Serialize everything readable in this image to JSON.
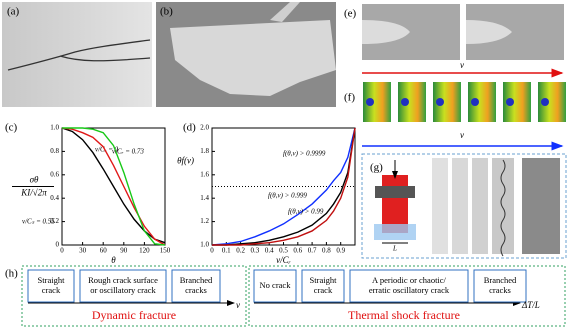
{
  "panels": {
    "a": "(a)",
    "b": "(b)",
    "e": "(e)",
    "f": "(f)",
    "g": "(g)",
    "h": "(h)"
  },
  "panel_e": {
    "velocity_label": "v"
  },
  "panel_f": {
    "velocity_label": "v"
  },
  "panel_g": {
    "length_label": "L"
  },
  "chart_data": [
    {
      "type": "line",
      "panel_label": "(c)",
      "x_label": "θ",
      "y_label": [
        "σθ",
        "KI/√2π"
      ],
      "x": [
        0,
        15,
        30,
        45,
        60,
        75,
        90,
        105,
        120,
        135,
        150
      ],
      "series": [
        {
          "name": "v/Cᵣ = 0",
          "color": "#000000",
          "values": [
            1.0,
            0.97,
            0.9,
            0.79,
            0.65,
            0.5,
            0.35,
            0.22,
            0.12,
            0.05,
            0.02
          ]
        },
        {
          "name": "v/Cₛ = 0.55",
          "color": "#e01818",
          "values": [
            1.0,
            0.99,
            0.96,
            0.92,
            0.84,
            0.68,
            0.5,
            0.32,
            0.16,
            0.05,
            0.0
          ]
        },
        {
          "name": "v/Cᵣ = 0.73",
          "color": "#18c818",
          "values": [
            1.0,
            1.0,
            1.0,
            0.99,
            0.96,
            0.85,
            0.62,
            0.35,
            0.12,
            0.01,
            0.0
          ]
        }
      ],
      "xlim": [
        0,
        150
      ],
      "ylim": [
        0,
        1.0
      ],
      "xticks": [
        0,
        30,
        60,
        90,
        120,
        150
      ],
      "yticks": [
        0,
        0.2,
        0.4,
        0.6,
        0.8,
        {
          "value": 1.0,
          "label": "1.0"
        }
      ]
    },
    {
      "type": "line",
      "panel_label": "(d)",
      "x_label": "v/Cᵣ",
      "y_label": [
        "θf(v)"
      ],
      "x": [
        0,
        0.1,
        0.2,
        0.3,
        0.4,
        0.5,
        0.6,
        0.7,
        0.8,
        0.85,
        0.9,
        0.95,
        1.0
      ],
      "series": [
        {
          "name": "f(θ,v) > 0.9999",
          "color": "#1030ff",
          "values": [
            1.0,
            1.01,
            1.03,
            1.07,
            1.12,
            1.18,
            1.26,
            1.35,
            1.47,
            1.55,
            1.62,
            1.75,
            2.0
          ]
        },
        {
          "name": "f(θ,v) > 0.999",
          "color": "#000000",
          "values": [
            1.0,
            1.0,
            1.01,
            1.02,
            1.04,
            1.07,
            1.11,
            1.17,
            1.27,
            1.35,
            1.45,
            1.62,
            2.0
          ]
        },
        {
          "name": "f(θ,v) > 0.99",
          "color": "#c01010",
          "values": [
            1.0,
            1.0,
            1.0,
            1.01,
            1.02,
            1.04,
            1.07,
            1.12,
            1.21,
            1.29,
            1.4,
            1.58,
            2.0
          ]
        }
      ],
      "hline": 1.5,
      "xlim": [
        0,
        1.0
      ],
      "ylim": [
        1.0,
        2.0
      ],
      "xticks": [
        0,
        0.1,
        0.2,
        0.3,
        0.4,
        0.5,
        0.6,
        0.7,
        0.8,
        0.9
      ],
      "yticks": [
        {
          "value": 1.0,
          "label": "1.0"
        },
        {
          "value": 1.2,
          "label": "1.2"
        },
        {
          "value": 1.4,
          "label": "1.4"
        },
        {
          "value": 1.6,
          "label": "1.6"
        },
        {
          "value": 1.8,
          "label": "1.8"
        },
        {
          "value": 2.0,
          "label": "2.0"
        }
      ]
    }
  ],
  "diagram_h": {
    "dynamic": {
      "boxes": [
        [
          "Straight",
          "crack"
        ],
        [
          "Rough crack surface",
          "or oscillatory crack"
        ],
        [
          "Branched",
          "cracks"
        ]
      ],
      "axis_label": "v",
      "caption": "Dynamic fracture"
    },
    "thermal": {
      "boxes": [
        [
          "No crack"
        ],
        [
          "Straight",
          "crack"
        ],
        [
          "A periodic or chaotic/",
          "erratic oscillatory crack"
        ],
        [
          "Branched",
          "cracks"
        ]
      ],
      "axis_label": "ΔT/L",
      "caption": "Thermal shock fracture"
    }
  }
}
